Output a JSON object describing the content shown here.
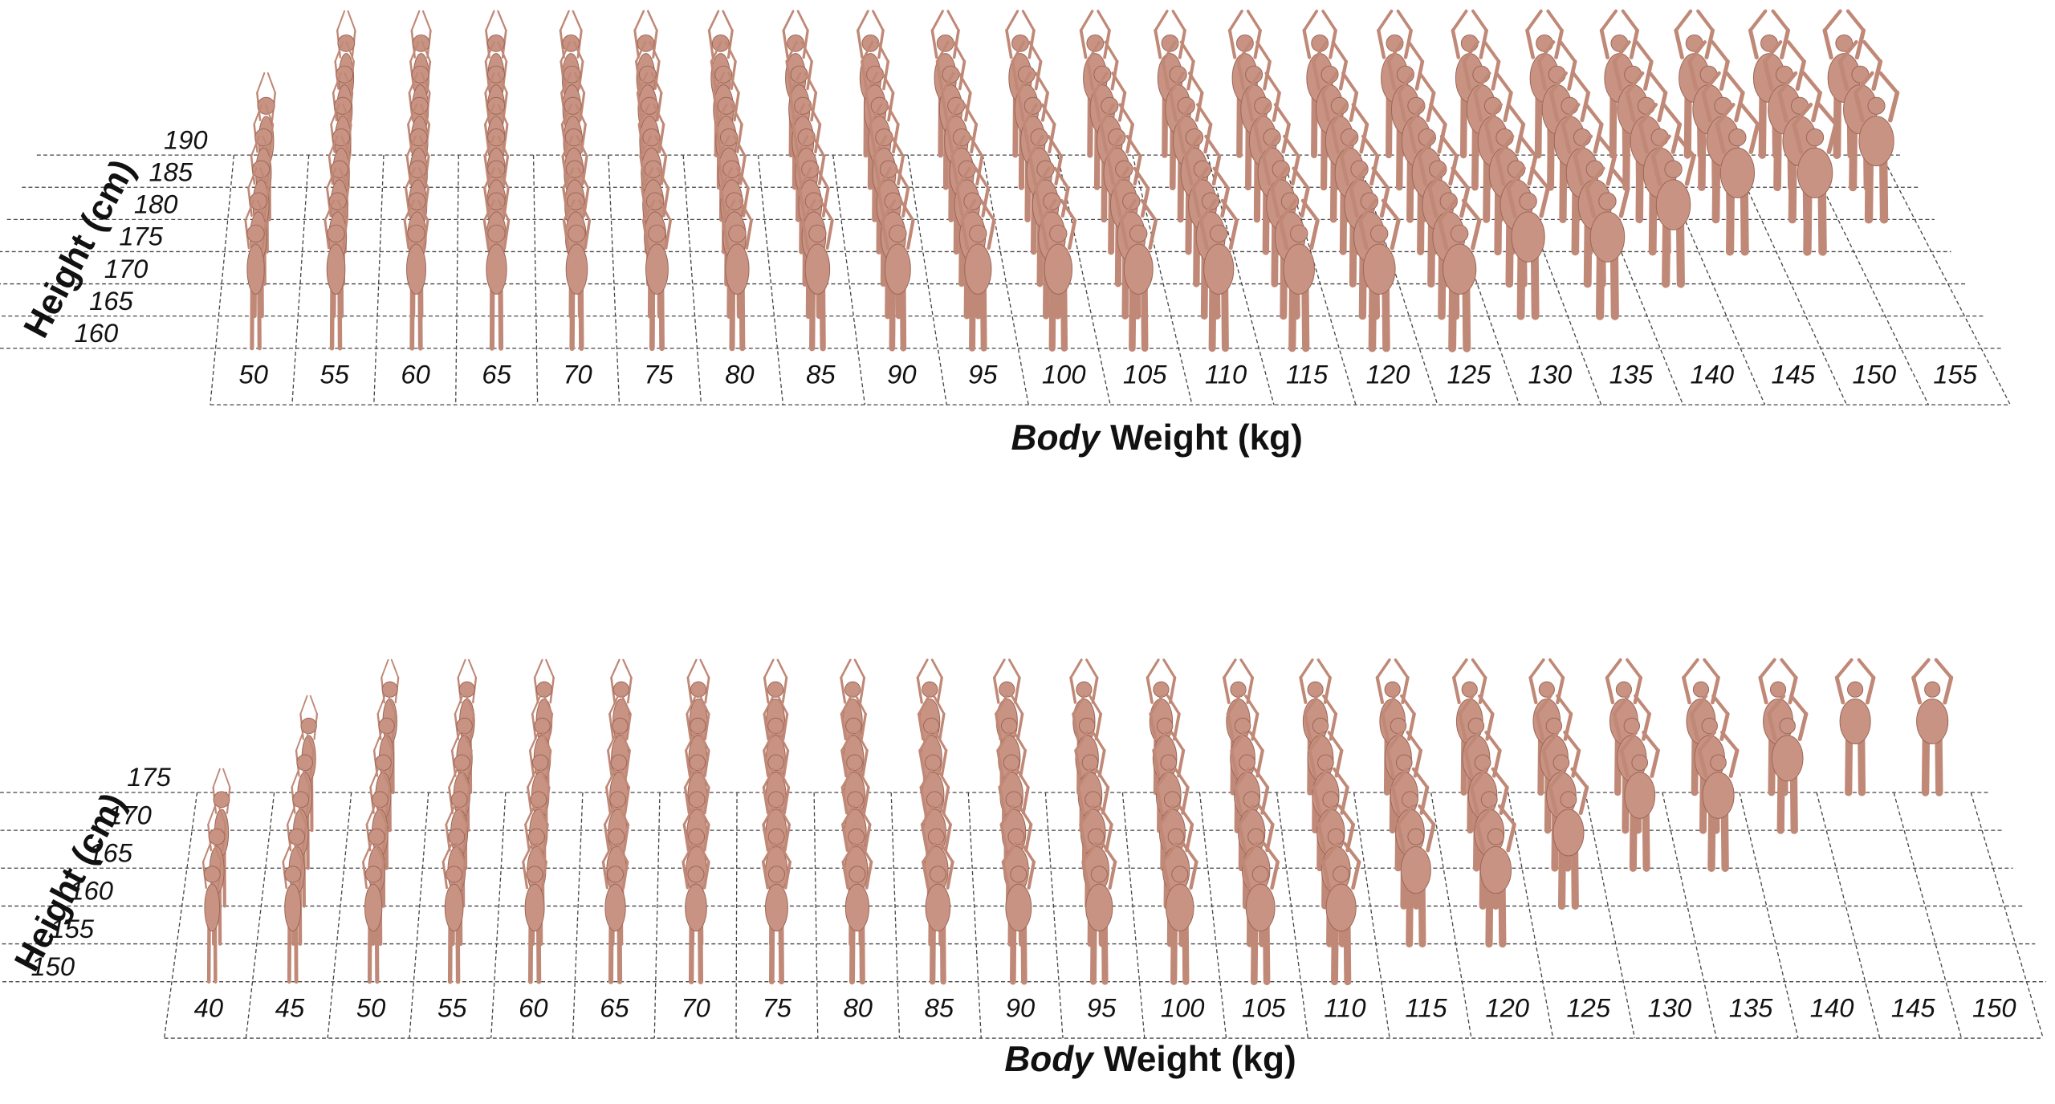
{
  "panels": [
    {
      "y_axis_label": "Height (cm)",
      "x_axis_label_italic": "Body",
      "x_axis_label_rest": "Weight (kg)",
      "heights": [
        160,
        165,
        170,
        175,
        180,
        185,
        190
      ],
      "weights": [
        50,
        55,
        60,
        65,
        70,
        75,
        80,
        85,
        90,
        95,
        100,
        105,
        110,
        115,
        120,
        125,
        130,
        135,
        140,
        145,
        150,
        155
      ]
    },
    {
      "y_axis_label": "Height (cm)",
      "x_axis_label_italic": "Body",
      "x_axis_label_rest": "Weight (kg)",
      "heights": [
        150,
        155,
        160,
        165,
        170,
        175
      ],
      "weights": [
        40,
        45,
        50,
        55,
        60,
        65,
        70,
        75,
        80,
        85,
        90,
        95,
        100,
        105,
        110,
        115,
        120,
        125,
        130,
        135,
        140,
        145,
        150
      ]
    }
  ]
}
